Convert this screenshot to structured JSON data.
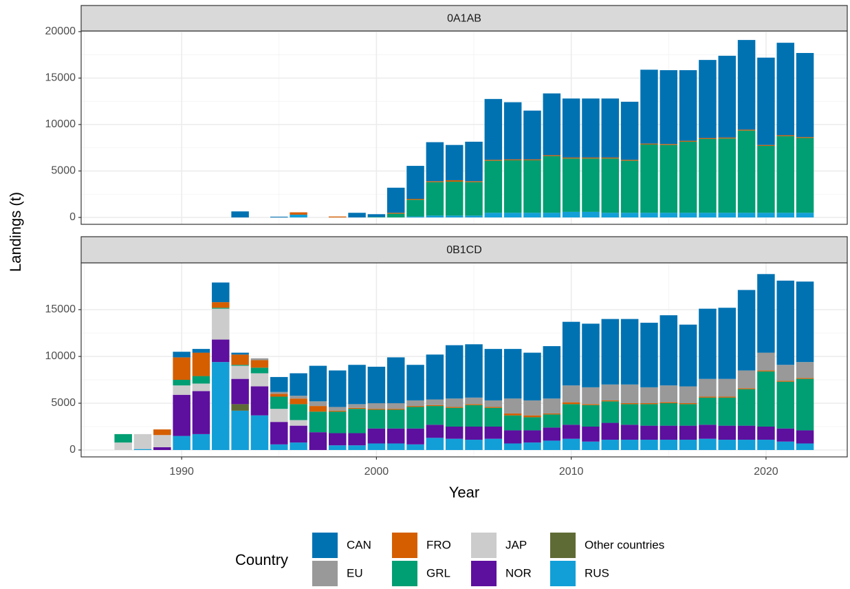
{
  "chart_data": {
    "type": "bar",
    "stacked": true,
    "x_label": "Year",
    "y_label": "Landings (t)",
    "legend_title": "Country",
    "legend_position": "bottom",
    "grid": true,
    "x": [
      1987,
      1988,
      1989,
      1990,
      1991,
      1992,
      1993,
      1994,
      1995,
      1996,
      1997,
      1998,
      1999,
      2000,
      2001,
      2002,
      2003,
      2004,
      2005,
      2006,
      2007,
      2008,
      2009,
      2010,
      2011,
      2012,
      2013,
      2014,
      2015,
      2016,
      2017,
      2018,
      2019,
      2020,
      2021,
      2022
    ],
    "xlim": [
      1984.84,
      2024.17
    ],
    "xticks": [
      1990,
      2000,
      2010,
      2020
    ],
    "series": [
      {
        "name": "CAN",
        "color": "#0072B2"
      },
      {
        "name": "EU",
        "color": "#999999"
      },
      {
        "name": "FRO",
        "color": "#D55E00"
      },
      {
        "name": "GRL",
        "color": "#009E73"
      },
      {
        "name": "JAP",
        "color": "#CCCCCC"
      },
      {
        "name": "NOR",
        "color": "#5D0F9E"
      },
      {
        "name": "Other countries",
        "color": "#5F6B34"
      },
      {
        "name": "RUS",
        "color": "#129FD8"
      }
    ],
    "panels": [
      {
        "title": "0A1AB",
        "ylim": [
          -740,
          20070
        ],
        "yticks": [
          0,
          5000,
          10000,
          15000,
          20000
        ],
        "values": [
          [
            0,
            0,
            0,
            0,
            0,
            0,
            650,
            0,
            80,
            0,
            0,
            0,
            500,
            300,
            2700,
            3550,
            4200,
            3800,
            4250,
            6550,
            6150,
            5250,
            6650,
            6350,
            6350,
            6350,
            6250,
            7950,
            7950,
            7600,
            8400,
            8800,
            9650,
            9400,
            9950,
            9050
          ],
          [
            0,
            0,
            0,
            0,
            0,
            0,
            0,
            0,
            0,
            0,
            0,
            0,
            0,
            0,
            0,
            0,
            0,
            0,
            0,
            0,
            0,
            0,
            0,
            0,
            0,
            0,
            0,
            0,
            0,
            0,
            0,
            0,
            0,
            0,
            0,
            0
          ],
          [
            0,
            0,
            0,
            0,
            0,
            0,
            0,
            0,
            0,
            250,
            0,
            100,
            0,
            0,
            100,
            100,
            100,
            150,
            100,
            100,
            100,
            100,
            100,
            100,
            100,
            100,
            100,
            100,
            100,
            100,
            100,
            100,
            100,
            100,
            100,
            100
          ],
          [
            0,
            0,
            0,
            0,
            0,
            0,
            0,
            0,
            0,
            0,
            0,
            0,
            0,
            50,
            400,
            1800,
            3600,
            3650,
            3600,
            5600,
            5650,
            5650,
            6100,
            5750,
            5750,
            5850,
            5600,
            7350,
            7300,
            7650,
            7950,
            8000,
            8850,
            7200,
            8250,
            8050
          ],
          [
            0,
            0,
            0,
            0,
            0,
            0,
            0,
            0,
            0,
            0,
            0,
            0,
            0,
            0,
            0,
            0,
            0,
            0,
            0,
            0,
            0,
            0,
            0,
            0,
            0,
            0,
            0,
            0,
            0,
            0,
            0,
            0,
            0,
            0,
            0,
            0
          ],
          [
            0,
            0,
            0,
            0,
            0,
            0,
            0,
            0,
            0,
            0,
            0,
            0,
            0,
            0,
            0,
            0,
            0,
            0,
            0,
            0,
            0,
            0,
            0,
            0,
            0,
            0,
            0,
            0,
            0,
            0,
            0,
            0,
            0,
            0,
            0,
            0
          ],
          [
            0,
            0,
            0,
            0,
            0,
            0,
            0,
            0,
            0,
            0,
            0,
            0,
            0,
            0,
            0,
            0,
            0,
            0,
            0,
            0,
            0,
            0,
            0,
            0,
            0,
            0,
            0,
            0,
            0,
            0,
            0,
            0,
            0,
            0,
            0,
            0
          ],
          [
            0,
            0,
            0,
            0,
            0,
            0,
            0,
            0,
            0,
            300,
            0,
            0,
            0,
            0,
            0,
            100,
            200,
            200,
            200,
            500,
            500,
            500,
            500,
            600,
            600,
            500,
            500,
            500,
            500,
            500,
            500,
            500,
            500,
            500,
            500,
            500
          ]
        ]
      },
      {
        "title": "0B1CD",
        "ylim": [
          -735,
          20000
        ],
        "yticks": [
          0,
          5000,
          10000,
          15000
        ],
        "values": [
          [
            0,
            0,
            0,
            600,
            400,
            2100,
            200,
            0,
            1600,
            2400,
            3800,
            3900,
            4200,
            3900,
            4900,
            3800,
            4800,
            5700,
            5700,
            5500,
            5300,
            5100,
            5600,
            6800,
            6800,
            7000,
            7000,
            6900,
            7500,
            6600,
            7500,
            7600,
            8600,
            8400,
            9000,
            8600
          ],
          [
            0,
            0,
            0,
            0,
            0,
            0,
            0,
            200,
            200,
            300,
            500,
            400,
            400,
            600,
            600,
            600,
            600,
            900,
            700,
            700,
            1600,
            1600,
            1600,
            1800,
            1800,
            1700,
            2000,
            1700,
            1800,
            1800,
            1900,
            1900,
            1900,
            1900,
            1700,
            1700
          ],
          [
            0,
            0,
            600,
            2400,
            2500,
            600,
            1100,
            800,
            300,
            600,
            600,
            100,
            100,
            100,
            100,
            100,
            100,
            100,
            100,
            100,
            200,
            200,
            100,
            200,
            100,
            100,
            100,
            100,
            100,
            100,
            100,
            100,
            100,
            100,
            100,
            100
          ],
          [
            900,
            0,
            0,
            600,
            800,
            100,
            100,
            600,
            1300,
            1700,
            2200,
            2300,
            2600,
            2000,
            2000,
            2300,
            2000,
            2000,
            2300,
            2000,
            1600,
            1400,
            1400,
            2200,
            2300,
            2300,
            2200,
            2300,
            2400,
            2300,
            2900,
            3000,
            3900,
            5900,
            5000,
            5500
          ],
          [
            800,
            1600,
            1300,
            1000,
            800,
            3300,
            1400,
            1400,
            1400,
            600,
            0,
            0,
            0,
            0,
            0,
            0,
            0,
            0,
            0,
            0,
            0,
            0,
            0,
            0,
            0,
            0,
            0,
            0,
            0,
            0,
            0,
            0,
            0,
            0,
            0,
            0
          ],
          [
            0,
            0,
            300,
            4400,
            4600,
            2400,
            2700,
            3100,
            2400,
            1800,
            1900,
            1300,
            1300,
            1600,
            1600,
            1700,
            1400,
            1300,
            1400,
            1300,
            1400,
            1300,
            1400,
            1500,
            1600,
            1800,
            1600,
            1500,
            1500,
            1500,
            1500,
            1500,
            1500,
            1400,
            1400,
            1400
          ],
          [
            0,
            0,
            0,
            0,
            0,
            0,
            700,
            0,
            0,
            0,
            0,
            0,
            0,
            0,
            0,
            0,
            0,
            0,
            0,
            0,
            0,
            0,
            0,
            0,
            0,
            0,
            0,
            0,
            0,
            0,
            0,
            0,
            0,
            0,
            0,
            0
          ],
          [
            0,
            100,
            0,
            1500,
            1700,
            9400,
            4200,
            3700,
            600,
            800,
            0,
            500,
            500,
            700,
            700,
            600,
            1300,
            1200,
            1100,
            1200,
            700,
            800,
            1000,
            1200,
            900,
            1100,
            1100,
            1100,
            1100,
            1100,
            1200,
            1100,
            1100,
            1100,
            900,
            700
          ]
        ]
      }
    ]
  }
}
